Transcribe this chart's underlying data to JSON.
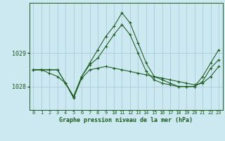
{
  "title": "Graphe pression niveau de la mer (hPa)",
  "background_color": "#cce8f0",
  "grid_color": "#aaccdd",
  "line_color": "#1a5c1a",
  "x_labels": [
    "0",
    "1",
    "2",
    "3",
    "4",
    "5",
    "6",
    "7",
    "8",
    "9",
    "10",
    "11",
    "12",
    "13",
    "14",
    "15",
    "16",
    "17",
    "18",
    "19",
    "20",
    "21",
    "22",
    "23"
  ],
  "ylim": [
    1027.3,
    1030.5
  ],
  "yticks": [
    1028,
    1029
  ],
  "series": [
    [
      1028.5,
      1028.5,
      1028.5,
      1028.5,
      1028.1,
      1027.7,
      1028.3,
      1028.7,
      1029.1,
      1029.5,
      1029.8,
      1030.2,
      1029.9,
      1029.3,
      1028.7,
      1028.3,
      1028.2,
      1028.1,
      1028.0,
      1028.0,
      1028.0,
      1028.3,
      1028.7,
      1029.1
    ],
    [
      1028.5,
      1028.5,
      1028.4,
      1028.3,
      1028.1,
      1027.65,
      1028.25,
      1028.5,
      1028.55,
      1028.6,
      1028.55,
      1028.5,
      1028.45,
      1028.4,
      1028.35,
      1028.3,
      1028.25,
      1028.2,
      1028.15,
      1028.1,
      1028.05,
      1028.1,
      1028.3,
      1028.6
    ],
    [
      1028.5,
      1028.5,
      1028.5,
      1028.5,
      1028.1,
      1027.7,
      1028.3,
      1028.65,
      1028.85,
      1029.2,
      1029.55,
      1029.85,
      1029.55,
      1029.0,
      1028.45,
      1028.2,
      1028.1,
      1028.05,
      1028.0,
      1028.0,
      1028.0,
      1028.15,
      1028.55,
      1028.8
    ]
  ]
}
